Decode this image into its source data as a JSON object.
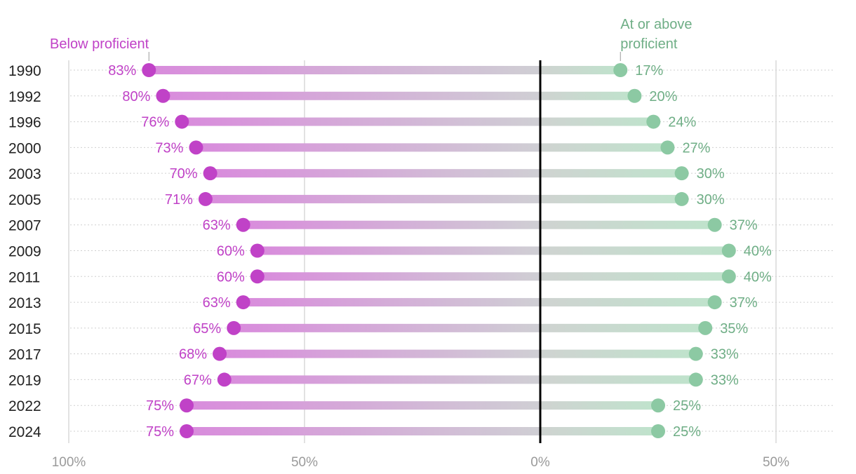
{
  "chart_data": {
    "type": "diverging-dot",
    "title": "",
    "years": [
      "1990",
      "1992",
      "1996",
      "2000",
      "2003",
      "2005",
      "2007",
      "2009",
      "2011",
      "2013",
      "2015",
      "2017",
      "2019",
      "2022",
      "2024"
    ],
    "series": [
      {
        "name": "Below proficient",
        "color": "#c042c7",
        "direction": "left",
        "values": [
          83,
          80,
          76,
          73,
          70,
          71,
          63,
          60,
          60,
          63,
          65,
          68,
          67,
          75,
          75
        ],
        "labels": [
          "83%",
          "80%",
          "76%",
          "73%",
          "70%",
          "71%",
          "63%",
          "60%",
          "60%",
          "63%",
          "65%",
          "68%",
          "67%",
          "75%",
          "75%"
        ]
      },
      {
        "name_lines": [
          "At or above",
          "proficient"
        ],
        "color": "#8cc9a3",
        "label_color": "#6fae86",
        "direction": "right",
        "values": [
          17,
          20,
          24,
          27,
          30,
          30,
          37,
          40,
          40,
          37,
          35,
          33,
          33,
          25,
          25
        ],
        "labels": [
          "17%",
          "20%",
          "24%",
          "27%",
          "30%",
          "30%",
          "37%",
          "40%",
          "40%",
          "37%",
          "35%",
          "33%",
          "33%",
          "25%",
          "25%"
        ]
      }
    ],
    "x_ticks": [
      {
        "value": -100,
        "label": "100%"
      },
      {
        "value": -50,
        "label": "50%"
      },
      {
        "value": 0,
        "label": "0%"
      },
      {
        "value": 50,
        "label": "50%"
      }
    ],
    "xlim": [
      -100,
      60
    ],
    "grid": true,
    "colors": {
      "below": "#c042c7",
      "above": "#8cc9a3",
      "above_text": "#6fae86",
      "neutral": "#cfcfd4",
      "zero_line": "#000000",
      "grid": "#d9d9d9"
    }
  }
}
